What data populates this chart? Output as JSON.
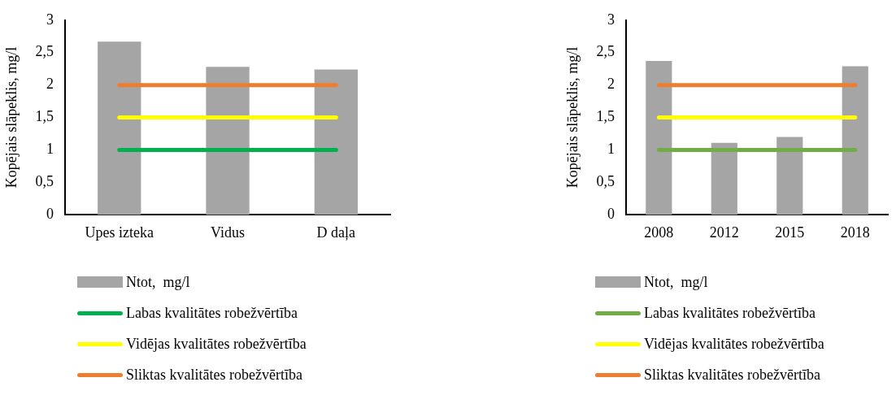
{
  "chart_data": [
    {
      "type": "bar",
      "categories": [
        "Upes izteka",
        "Vidus",
        "D daļa"
      ],
      "ylabel": "Kopējais slāpeklis, mg/l",
      "ylim": [
        0,
        3
      ],
      "yticks": [
        0,
        {
          "value": 0.5,
          "label": "0,5"
        },
        1,
        {
          "value": 1.5,
          "label": "1,5"
        },
        2,
        {
          "value": 2.5,
          "label": "2,5"
        },
        3
      ],
      "grid": false,
      "legend": "bottom",
      "series": [
        {
          "name": "Ntot,  mg/l",
          "color": "#a5a5a5",
          "values": [
            2.67,
            2.28,
            2.24
          ]
        },
        {
          "type": "line",
          "name": "Labas kvalitātes robežvērtība",
          "color": "#00b050",
          "values": [
            1,
            1,
            1
          ]
        },
        {
          "type": "line",
          "name": "Vidējas kvalitātes robežvērtība",
          "color": "#ffff00",
          "values": [
            1.5,
            1.5,
            1.5
          ]
        },
        {
          "type": "line",
          "name": "Sliktas kvalitātes robežvērtība",
          "color": "#ed7d31",
          "values": [
            2,
            2,
            2
          ]
        }
      ]
    },
    {
      "type": "bar",
      "categories": [
        "2008",
        "2012",
        "2015",
        "2018"
      ],
      "ylabel": "Kopējais slāpeklis, mg/l",
      "ylim": [
        0,
        3
      ],
      "yticks": [
        0,
        {
          "value": 0.5,
          "label": "0,5"
        },
        1,
        {
          "value": 1.5,
          "label": "1,5"
        },
        2,
        {
          "value": 2.5,
          "label": "2,5"
        },
        3
      ],
      "grid": false,
      "legend": "bottom",
      "series": [
        {
          "name": "Ntot,  mg/l",
          "color": "#a5a5a5",
          "values": [
            2.37,
            1.11,
            1.2,
            2.29
          ]
        },
        {
          "type": "line",
          "name": "Labas kvalitātes robežvērtība",
          "color": "#70ad47",
          "values": [
            1,
            1,
            1,
            1
          ]
        },
        {
          "type": "line",
          "name": "Vidējas kvalitātes robežvērtība",
          "color": "#ffff00",
          "values": [
            1.5,
            1.5,
            1.5,
            1.5
          ]
        },
        {
          "type": "line",
          "name": "Sliktas kvalitātes robežvērtība",
          "color": "#ed7d31",
          "values": [
            2,
            2,
            2,
            2
          ]
        }
      ]
    }
  ]
}
